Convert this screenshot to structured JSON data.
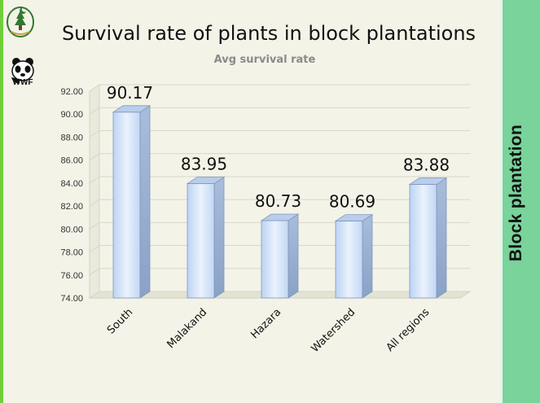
{
  "slide": {
    "title": "Survival rate of plants in block plantations",
    "side_label": "Block plantation",
    "logo_text": "WWF"
  },
  "colors": {
    "side_panel": "#79d39a",
    "bar_top": "#c7dcf7",
    "bar_front": "#d8e8fb",
    "bar_side": "#9ab1d3",
    "accent_left": "#6fcf3a"
  },
  "chart_data": {
    "type": "bar",
    "title": "Avg survival rate",
    "categories": [
      "South",
      "Malakand",
      "Hazara",
      "Watershed",
      "All regions"
    ],
    "values": [
      90.17,
      83.95,
      80.73,
      80.69,
      83.88
    ],
    "data_labels": [
      "90.17",
      "83.95",
      "80.73",
      "80.69",
      "83.88"
    ],
    "ylim": [
      74,
      92
    ],
    "yticks": [
      "74.00",
      "76.00",
      "78.00",
      "80.00",
      "82.00",
      "84.00",
      "86.00",
      "88.00",
      "90.00",
      "92.00"
    ],
    "grid": true,
    "style": "3d-bar"
  }
}
